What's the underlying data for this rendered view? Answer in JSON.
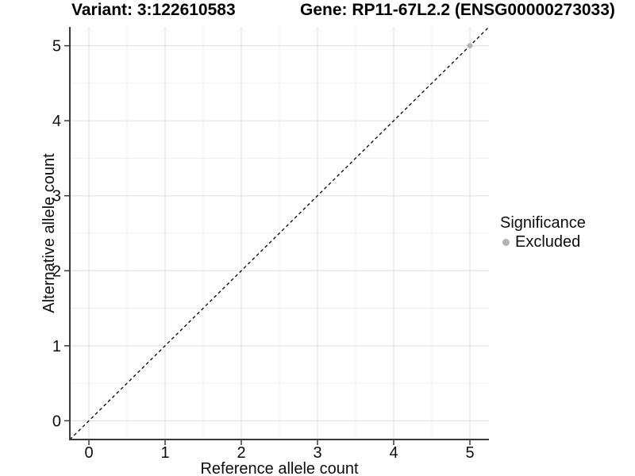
{
  "header": {
    "variant_title": "Variant: 3:122610583",
    "gene_title": "Gene: RP11-67L2.2 (ENSG00000273033)"
  },
  "legend": {
    "title": "Significance",
    "items": [
      {
        "label": "Excluded",
        "color": "#b4b4b4"
      }
    ]
  },
  "chart_data": {
    "type": "scatter",
    "titles": [
      "Variant: 3:122610583",
      "Gene: RP11-67L2.2 (ENSG00000273033)"
    ],
    "xlabel": "Reference allele count",
    "ylabel": "Alternative allele count",
    "xlim": [
      -0.25,
      5.25
    ],
    "ylim": [
      -0.25,
      5.25
    ],
    "x_major_ticks": [
      0,
      1,
      2,
      3,
      4,
      5
    ],
    "y_major_ticks": [
      0,
      1,
      2,
      3,
      4,
      5
    ],
    "x_minor_gridlines": [
      0.5,
      1.5,
      2.5,
      3.5,
      4.5
    ],
    "y_minor_gridlines": [
      0.5,
      1.5,
      2.5,
      3.5,
      4.5
    ],
    "grid": "major+minor",
    "legend_position": "right",
    "series": [
      {
        "name": "Excluded",
        "color": "#b4b4b4",
        "points": [
          [
            5,
            5
          ]
        ]
      }
    ],
    "reference_line": {
      "kind": "identity y=x",
      "style": "dashed",
      "color": "#000000",
      "x": [
        -0.25,
        5.25
      ],
      "y": [
        -0.25,
        5.25
      ]
    },
    "style": {
      "background": "#ffffff",
      "grid_major_color": "#e3e3e3",
      "grid_minor_color": "#efefef",
      "axis_line_color": "#3a3a3a",
      "tick_color": "#3a3a3a",
      "text_color": "#0d0d0d"
    }
  }
}
